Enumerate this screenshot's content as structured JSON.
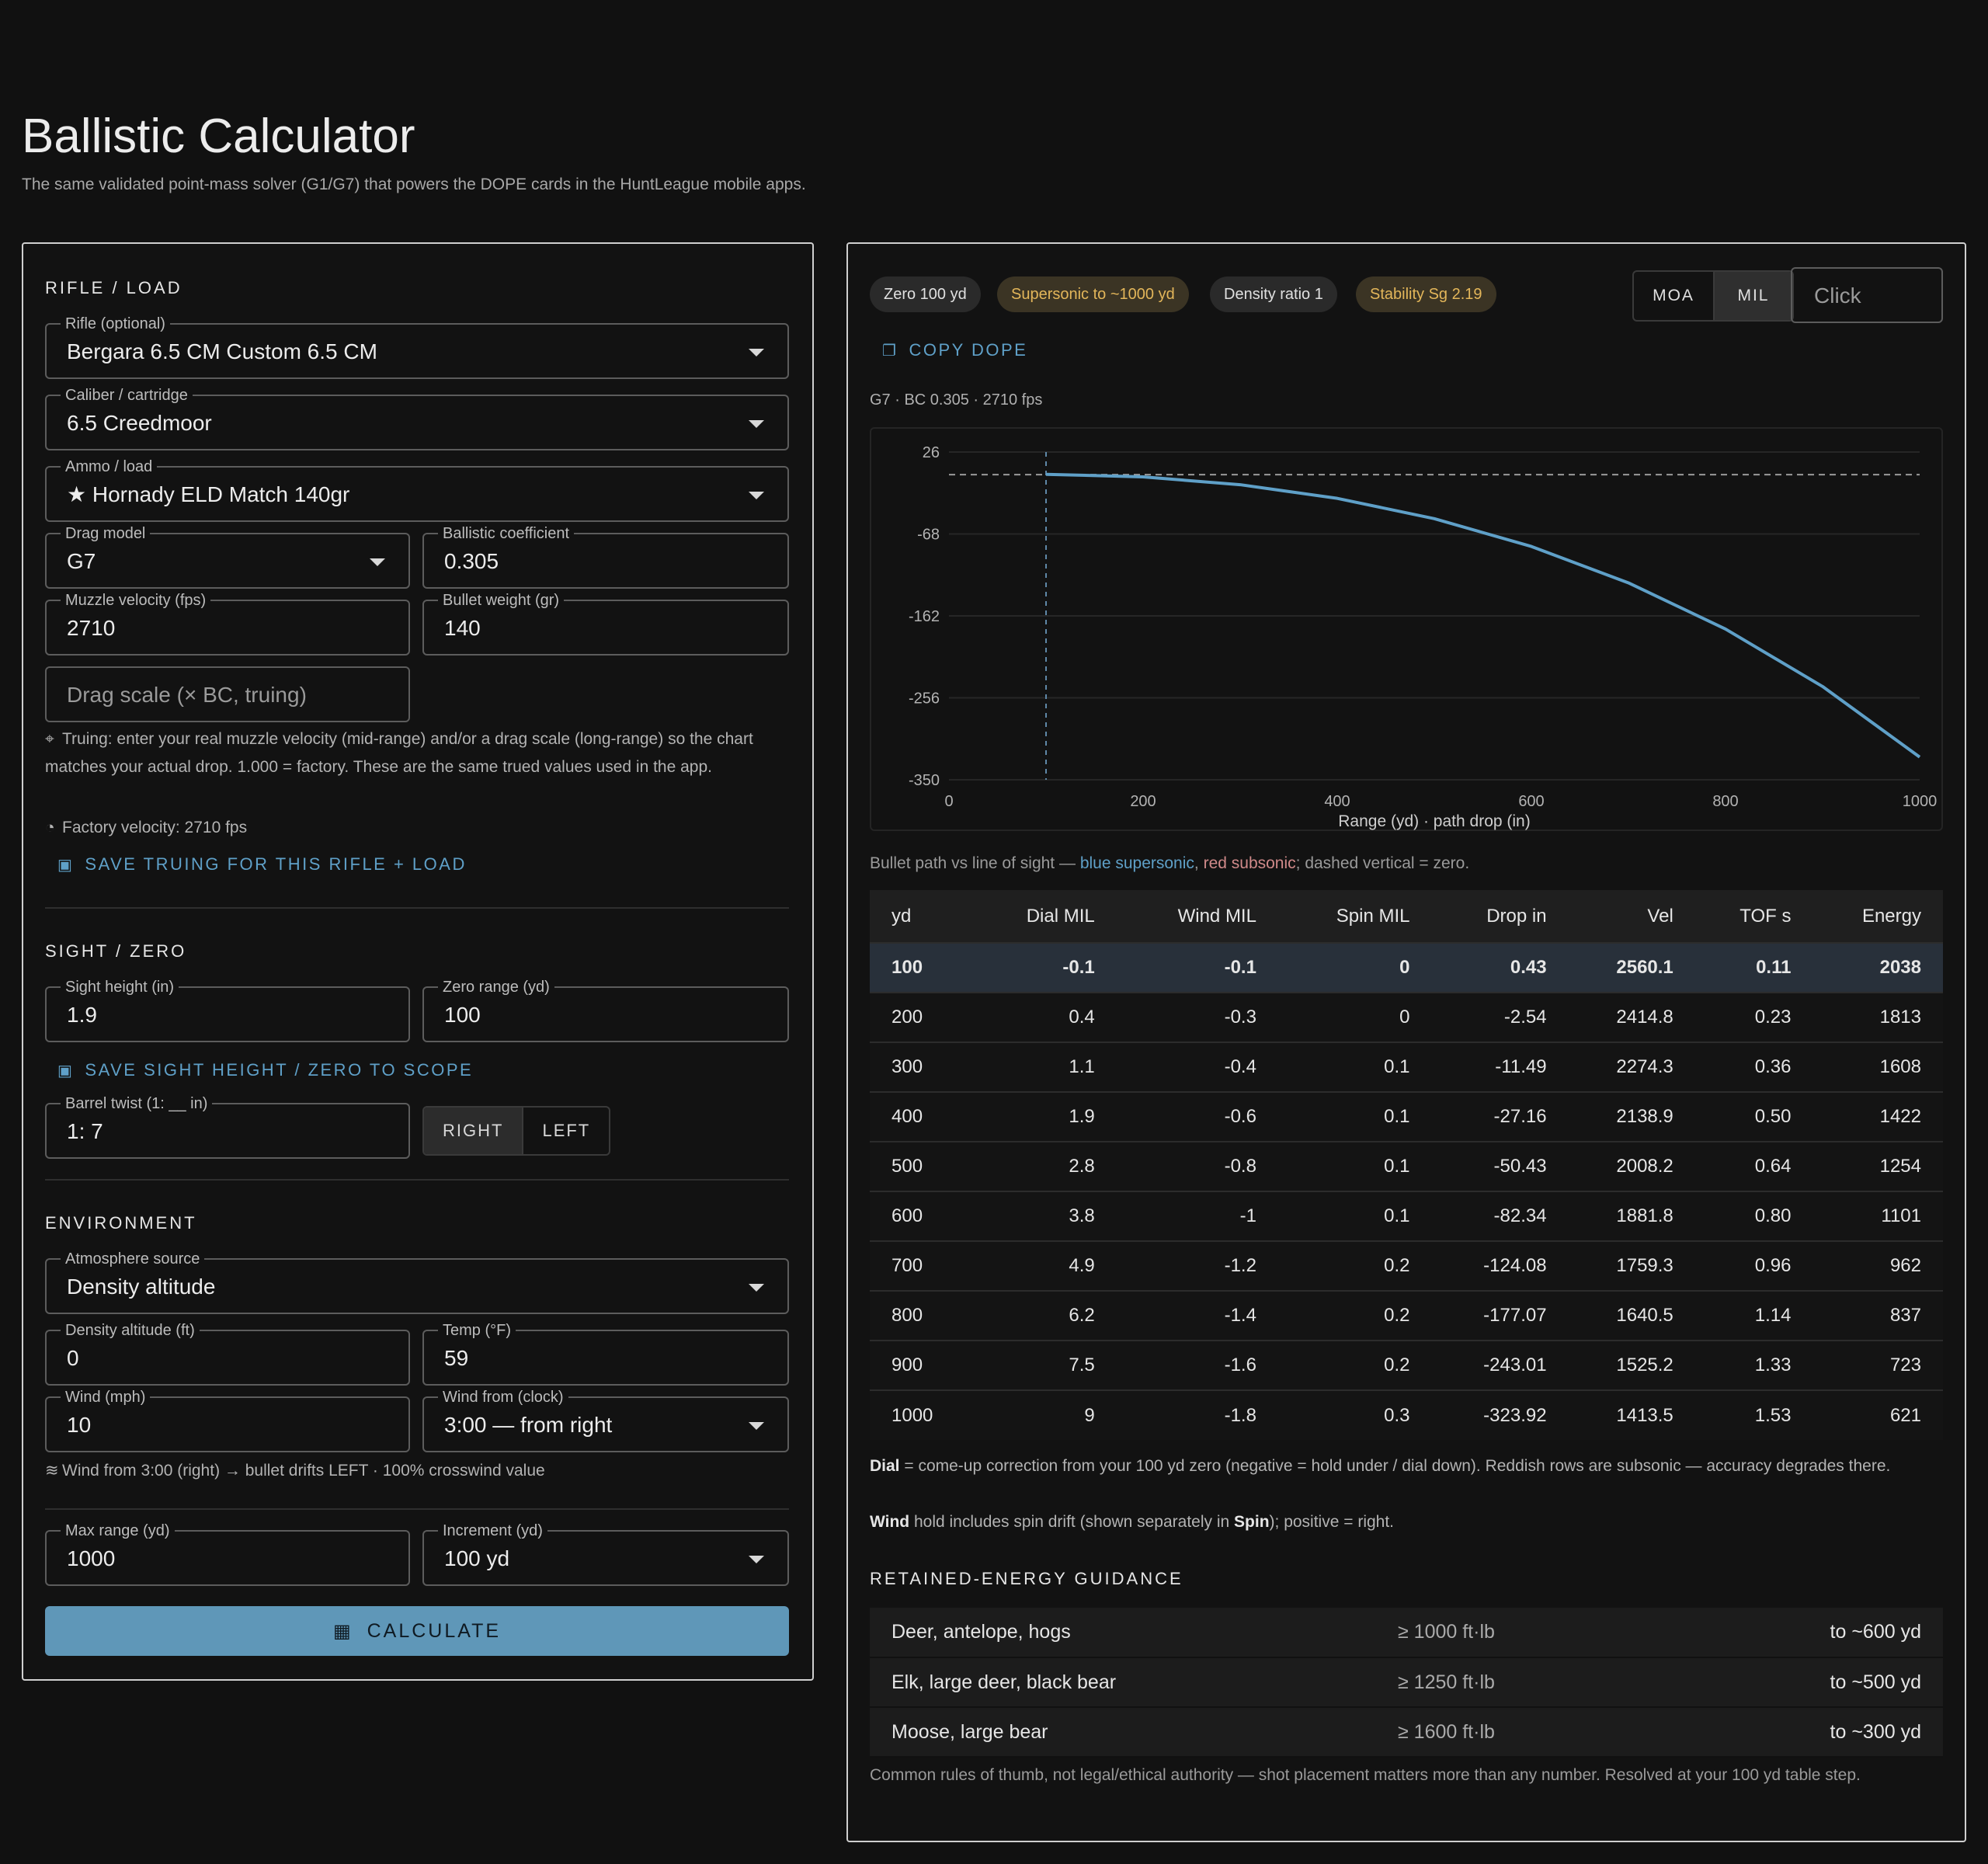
{
  "page": {
    "title": "Ballistic Calculator",
    "subtitle": "The same validated point-mass solver (G1/G7) that powers the DOPE cards in the HuntLeague mobile apps."
  },
  "rifle_load": {
    "heading": "RIFLE / LOAD",
    "rifle": {
      "label": "Rifle (optional)",
      "value": "Bergara 6.5 CM Custom 6.5 CM"
    },
    "caliber": {
      "label": "Caliber / cartridge",
      "value": "6.5 Creedmoor"
    },
    "ammo": {
      "label": "Ammo / load",
      "value": "★ Hornady ELD Match 140gr"
    },
    "drag_model": {
      "label": "Drag model",
      "value": "G7"
    },
    "bc": {
      "label": "Ballistic coefficient",
      "value": "0.305"
    },
    "muzzle_velocity": {
      "label": "Muzzle velocity (fps)",
      "value": "2710"
    },
    "bullet_weight": {
      "label": "Bullet weight (gr)",
      "value": "140"
    },
    "drag_scale": {
      "placeholder": "Drag scale (× BC, truing)"
    },
    "truing_note": "Truing: enter your real muzzle velocity (mid-range) and/or a drag scale (long-range) so the chart matches your actual drop. 1.000 = factory. These are the same trued values used in the app.",
    "factory_velocity": "Factory velocity: 2710 fps",
    "save_truing": "SAVE TRUING FOR THIS RIFLE + LOAD"
  },
  "sight_zero": {
    "heading": "SIGHT / ZERO",
    "sight_height": {
      "label": "Sight height (in)",
      "value": "1.9"
    },
    "zero_range": {
      "label": "Zero range (yd)",
      "value": "100"
    },
    "save_sight": "SAVE SIGHT HEIGHT / ZERO TO SCOPE",
    "barrel_twist": {
      "label": "Barrel twist (1: __ in)",
      "value": "1: 7"
    },
    "twist_right": "RIGHT",
    "twist_left": "LEFT"
  },
  "environment": {
    "heading": "ENVIRONMENT",
    "atmosphere": {
      "label": "Atmosphere source",
      "value": "Density altitude"
    },
    "density_altitude": {
      "label": "Density altitude (ft)",
      "value": "0"
    },
    "temp": {
      "label": "Temp (°F)",
      "value": "59"
    },
    "wind": {
      "label": "Wind (mph)",
      "value": "10"
    },
    "wind_from": {
      "label": "Wind from (clock)",
      "value": "3:00 — from right"
    },
    "wind_note": "Wind from 3:00 (right) → bullet drifts LEFT · 100% crosswind value"
  },
  "range": {
    "max_range": {
      "label": "Max range (yd)",
      "value": "1000"
    },
    "increment": {
      "label": "Increment (yd)",
      "value": "100 yd"
    },
    "calculate": "CALCULATE"
  },
  "results": {
    "chips": {
      "zero": "Zero 100 yd",
      "supersonic": "Supersonic to ~1000 yd",
      "density": "Density ratio 1",
      "stability": "Stability Sg 2.19"
    },
    "units": {
      "moa": "MOA",
      "mil": "MIL",
      "click_placeholder": "Click"
    },
    "copy_dope": "COPY DOPE",
    "chart_meta": "G7 · BC 0.305 · 2710 fps",
    "caption": {
      "prefix": "Bullet path vs line of sight — ",
      "blue": "blue supersonic",
      "sep": ", ",
      "red": "red subsonic",
      "suffix": "; dashed vertical = zero."
    },
    "table": {
      "headers": [
        "yd",
        "Dial MIL",
        "Wind MIL",
        "Spin MIL",
        "Drop in",
        "Vel",
        "TOF s",
        "Energy"
      ],
      "rows": [
        [
          "100",
          "-0.1",
          "-0.1",
          "0",
          "0.43",
          "2560.1",
          "0.11",
          "2038"
        ],
        [
          "200",
          "0.4",
          "-0.3",
          "0",
          "-2.54",
          "2414.8",
          "0.23",
          "1813"
        ],
        [
          "300",
          "1.1",
          "-0.4",
          "0.1",
          "-11.49",
          "2274.3",
          "0.36",
          "1608"
        ],
        [
          "400",
          "1.9",
          "-0.6",
          "0.1",
          "-27.16",
          "2138.9",
          "0.50",
          "1422"
        ],
        [
          "500",
          "2.8",
          "-0.8",
          "0.1",
          "-50.43",
          "2008.2",
          "0.64",
          "1254"
        ],
        [
          "600",
          "3.8",
          "-1",
          "0.1",
          "-82.34",
          "1881.8",
          "0.80",
          "1101"
        ],
        [
          "700",
          "4.9",
          "-1.2",
          "0.2",
          "-124.08",
          "1759.3",
          "0.96",
          "962"
        ],
        [
          "800",
          "6.2",
          "-1.4",
          "0.2",
          "-177.07",
          "1640.5",
          "1.14",
          "837"
        ],
        [
          "900",
          "7.5",
          "-1.6",
          "0.2",
          "-243.01",
          "1525.2",
          "1.33",
          "723"
        ],
        [
          "1000",
          "9",
          "-1.8",
          "0.3",
          "-323.92",
          "1413.5",
          "1.53",
          "621"
        ]
      ]
    },
    "dial_note": {
      "bold": "Dial",
      "text": " = come-up correction from your 100 yd zero (negative = hold under / dial down). Reddish rows are subsonic — accuracy degrades there."
    },
    "wind_note": {
      "bold": "Wind",
      "text": " hold includes spin drift (shown separately in ",
      "bold2": "Spin",
      "text2": "); positive = right."
    },
    "energy": {
      "heading": "RETAINED-ENERGY GUIDANCE",
      "rows": [
        {
          "game": "Deer, antelope, hogs",
          "threshold": "≥ 1000 ft·lb",
          "range": "to ~600 yd"
        },
        {
          "game": "Elk, large deer, black bear",
          "threshold": "≥ 1250 ft·lb",
          "range": "to ~500 yd"
        },
        {
          "game": "Moose, large bear",
          "threshold": "≥ 1600 ft·lb",
          "range": "to ~300 yd"
        }
      ],
      "footnote": "Common rules of thumb, not legal/ethical authority — shot placement matters more than any number. Resolved at your 100 yd table step."
    }
  },
  "chart_data": {
    "type": "line",
    "xlabel": "Range (yd) · path drop (in)",
    "xlim": [
      0,
      1000
    ],
    "ylim": [
      -350,
      26
    ],
    "x_ticks": [
      0,
      200,
      400,
      600,
      800,
      1000
    ],
    "y_ticks": [
      26,
      -68,
      -162,
      -256,
      -350
    ],
    "zero_x": 100,
    "line_of_sight_y": 0,
    "series": [
      {
        "x": [
          100,
          200,
          300,
          400,
          500,
          600,
          700,
          800,
          900,
          1000
        ],
        "y": [
          0.43,
          -2.54,
          -11.49,
          -27.16,
          -50.43,
          -82.34,
          -124.08,
          -177.07,
          -243.01,
          -323.92
        ]
      }
    ],
    "colors": {
      "supersonic": "#5fa0c8",
      "grid": "#262626",
      "axis_text": "#b3b3b3"
    }
  }
}
